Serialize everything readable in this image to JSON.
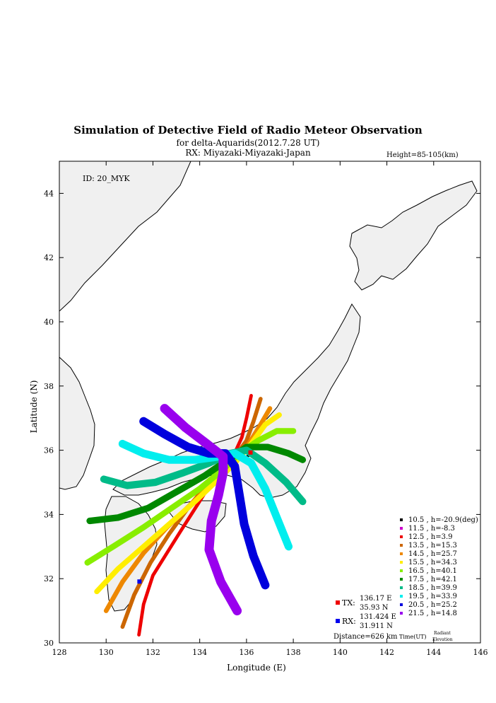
{
  "chart_data": {
    "type": "scatter",
    "title": "Simulation of Detective Field of Radio Meteor Observation",
    "subtitle_1": "for delta-Aquarids(2012.7.28 UT)",
    "subtitle_2": "RX: Miyazaki-Miyazaki-Japan",
    "height_note": "Height=85-105(km)",
    "id_label": "ID: 20_MYK",
    "xlabel": "Longitude (E)",
    "ylabel": "Latitude (N)",
    "xlim": [
      128,
      146
    ],
    "ylim": [
      30,
      45
    ],
    "x_ticks": [
      "128",
      "130",
      "132",
      "134",
      "136",
      "138",
      "140",
      "142",
      "144",
      "146"
    ],
    "y_ticks": [
      "30",
      "32",
      "34",
      "36",
      "38",
      "40",
      "42",
      "44"
    ],
    "grid": false,
    "legend_position": "bottom-right",
    "legend_header_time": "Time(UT)",
    "legend_header_radiant": "Radiant",
    "legend_header_elevation": "Elevation",
    "series": [
      {
        "name": "10.5 ,  h=-20.9(deg)",
        "color": "#000000",
        "points": [
          [
            135.9,
            35.7
          ],
          [
            136.1,
            35.85
          ]
        ]
      },
      {
        "name": "11.5 ,  h=-8.3",
        "color": "#cc00cc",
        "points": [
          [
            135.1,
            35.55
          ],
          [
            135.4,
            35.7
          ],
          [
            135.6,
            35.8
          ]
        ]
      },
      {
        "name": "12.5 ,  h=3.9",
        "color": "#ee0000",
        "points": [
          [
            131.4,
            30.25
          ],
          [
            131.6,
            31.2
          ],
          [
            132.0,
            32.1
          ],
          [
            132.6,
            32.8
          ],
          [
            133.2,
            33.5
          ],
          [
            133.9,
            34.3
          ],
          [
            134.6,
            35.1
          ],
          [
            135.3,
            35.6
          ],
          [
            135.8,
            36.4
          ],
          [
            136.0,
            37.0
          ],
          [
            136.2,
            37.7
          ]
        ]
      },
      {
        "name": "13.5 ,  h=15.3",
        "color": "#cc6600",
        "points": [
          [
            130.7,
            30.5
          ],
          [
            131.2,
            31.5
          ],
          [
            131.9,
            32.5
          ],
          [
            132.7,
            33.4
          ],
          [
            133.6,
            34.3
          ],
          [
            134.5,
            35.1
          ],
          [
            135.4,
            35.7
          ],
          [
            136.0,
            36.3
          ],
          [
            136.3,
            36.9
          ],
          [
            136.6,
            37.6
          ]
        ]
      },
      {
        "name": "14.5 ,  h=25.7",
        "color": "#ee8800",
        "points": [
          [
            130.0,
            31.0
          ],
          [
            130.7,
            31.9
          ],
          [
            131.6,
            32.8
          ],
          [
            132.6,
            33.6
          ],
          [
            133.6,
            34.3
          ],
          [
            134.6,
            35.0
          ],
          [
            135.4,
            35.6
          ],
          [
            136.1,
            36.2
          ],
          [
            136.6,
            36.8
          ],
          [
            137.0,
            37.3
          ]
        ]
      },
      {
        "name": "15.5 ,  h=34.3",
        "color": "#ffee00",
        "points": [
          [
            129.6,
            31.6
          ],
          [
            130.5,
            32.3
          ],
          [
            131.6,
            33.0
          ],
          [
            132.7,
            33.7
          ],
          [
            133.8,
            34.4
          ],
          [
            134.8,
            35.1
          ],
          [
            135.5,
            35.6
          ],
          [
            136.2,
            36.2
          ],
          [
            136.8,
            36.8
          ],
          [
            137.4,
            37.1
          ]
        ]
      },
      {
        "name": "16.5 ,  h=40.1",
        "color": "#88ee00",
        "points": [
          [
            129.2,
            32.5
          ],
          [
            130.3,
            33.0
          ],
          [
            131.6,
            33.6
          ],
          [
            132.8,
            34.2
          ],
          [
            134.0,
            34.8
          ],
          [
            135.0,
            35.4
          ],
          [
            135.7,
            35.9
          ],
          [
            136.5,
            36.3
          ],
          [
            137.3,
            36.6
          ],
          [
            138.0,
            36.6
          ]
        ]
      },
      {
        "name": "17.5 ,  h=42.1",
        "color": "#008800",
        "points": [
          [
            129.3,
            33.8
          ],
          [
            130.5,
            33.9
          ],
          [
            131.8,
            34.2
          ],
          [
            133.0,
            34.7
          ],
          [
            134.2,
            35.2
          ],
          [
            135.2,
            35.7
          ],
          [
            136.0,
            36.1
          ],
          [
            136.9,
            36.1
          ],
          [
            137.8,
            35.9
          ],
          [
            138.4,
            35.7
          ]
        ]
      },
      {
        "name": "18.5 ,  h=39.9",
        "color": "#00bb88",
        "points": [
          [
            129.9,
            35.1
          ],
          [
            130.9,
            34.9
          ],
          [
            132.1,
            35.0
          ],
          [
            133.3,
            35.3
          ],
          [
            134.4,
            35.6
          ],
          [
            135.3,
            35.9
          ],
          [
            136.0,
            36.0
          ],
          [
            136.8,
            35.6
          ],
          [
            137.7,
            35.0
          ],
          [
            138.4,
            34.4
          ]
        ]
      },
      {
        "name": "19.5 ,  h=33.9",
        "color": "#00eeee",
        "points": [
          [
            130.7,
            36.2
          ],
          [
            131.6,
            35.9
          ],
          [
            132.7,
            35.7
          ],
          [
            133.8,
            35.7
          ],
          [
            134.8,
            35.8
          ],
          [
            135.5,
            35.9
          ],
          [
            136.2,
            35.6
          ],
          [
            136.8,
            34.8
          ],
          [
            137.3,
            33.9
          ],
          [
            137.8,
            33.0
          ]
        ]
      },
      {
        "name": "20.5 ,  h=25.2",
        "color": "#0000dd",
        "points": [
          [
            131.6,
            36.9
          ],
          [
            132.5,
            36.5
          ],
          [
            133.5,
            36.1
          ],
          [
            134.4,
            35.9
          ],
          [
            135.1,
            35.9
          ],
          [
            135.5,
            35.5
          ],
          [
            135.7,
            34.6
          ],
          [
            135.9,
            33.7
          ],
          [
            136.3,
            32.7
          ],
          [
            136.8,
            31.8
          ]
        ]
      },
      {
        "name": "21.5 ,  h=14.8",
        "color": "#9900ee",
        "points": [
          [
            132.5,
            37.3
          ],
          [
            133.4,
            36.7
          ],
          [
            134.3,
            36.2
          ],
          [
            135.0,
            35.8
          ],
          [
            135.0,
            35.3
          ],
          [
            134.8,
            34.6
          ],
          [
            134.5,
            33.8
          ],
          [
            134.4,
            32.9
          ],
          [
            134.9,
            31.9
          ],
          [
            135.6,
            31.0
          ]
        ]
      }
    ],
    "tx": {
      "label": "TX:",
      "lon_label": "136.17 E",
      "lat_label": "35.93 N",
      "lon": 136.17,
      "lat": 35.93,
      "color": "#ee0000"
    },
    "rx": {
      "label": "RX:",
      "lon_label": "131.424 E",
      "lat_label": "31.911 N",
      "lon": 131.424,
      "lat": 31.911,
      "color": "#0000ee"
    },
    "distance": "Distance=626 km"
  }
}
